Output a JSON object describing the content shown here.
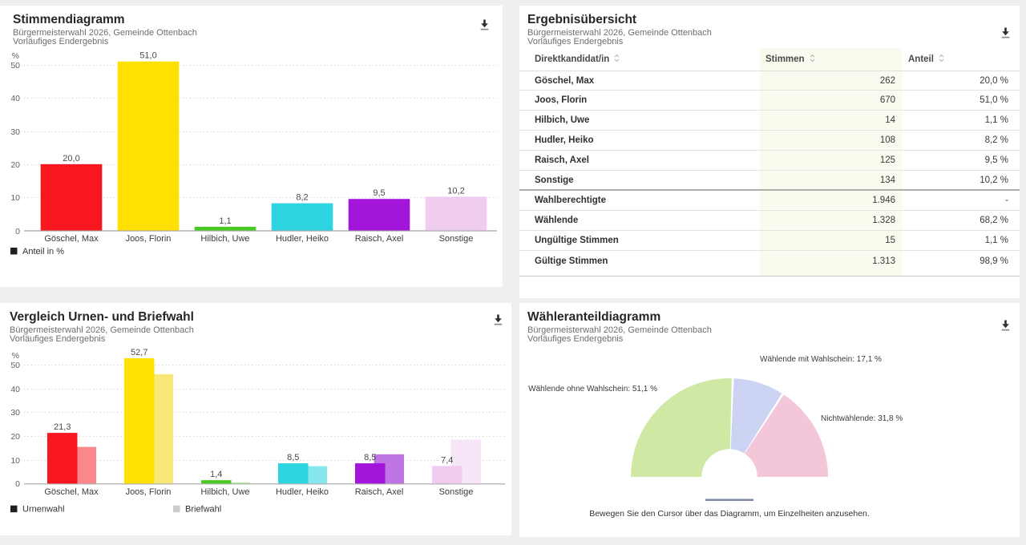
{
  "colors": {
    "page_bg": "#efefef",
    "panel_bg": "#ffffff",
    "bar": [
      "#f8171e",
      "#ffe000",
      "#47cb22",
      "#2cd5e0",
      "#a315da",
      "#f1ccf1"
    ],
    "bar_light": [
      "#f9878b",
      "#f9e878",
      "#a8e590",
      "#86e8ec",
      "#c075e5",
      "#f7e6f7"
    ],
    "legend_urnenwahl": "#1f1f1f",
    "legend_briefwahl": "#cccccc",
    "table_highlight_col": "#fafaef",
    "donut": [
      "#cfe8a4",
      "#cbd2f2",
      "#f4c6d9"
    ],
    "donut_divider": "#7d87a3"
  },
  "panels": {
    "stimmen": {
      "title": "Stimmendiagramm",
      "subtitle1": "Bürgermeisterwahl 2026, Gemeinde Ottenbach",
      "subtitle2": "Vorläufiges Endergebnis"
    },
    "ergebnis": {
      "title": "Ergebnisübersicht",
      "subtitle1": "Bürgermeisterwahl 2026, Gemeinde Ottenbach",
      "subtitle2": "Vorläufiges Endergebnis"
    },
    "vergleich": {
      "title": "Vergleich Urnen- und Briefwahl",
      "subtitle1": "Bürgermeisterwahl 2026, Gemeinde Ottenbach",
      "subtitle2": "Vorläufiges Endergebnis"
    },
    "waehleranteil": {
      "title": "Wähleranteildiagramm",
      "subtitle1": "Bürgermeisterwahl 2026, Gemeinde Ottenbach",
      "subtitle2": "Vorläufiges Endergebnis",
      "hint": "Bewegen Sie den Cursor über das Diagramm, um Einzelheiten anzusehen."
    }
  },
  "table": {
    "columns": [
      "Direktkandidat/in",
      "Stimmen",
      "Anteil"
    ],
    "rows": [
      {
        "label": "Göschel, Max",
        "stimmen": "262",
        "anteil": "20,0 %"
      },
      {
        "label": "Joos, Florin",
        "stimmen": "670",
        "anteil": "51,0 %"
      },
      {
        "label": "Hilbich, Uwe",
        "stimmen": "14",
        "anteil": "1,1 %"
      },
      {
        "label": "Hudler, Heiko",
        "stimmen": "108",
        "anteil": "8,2 %"
      },
      {
        "label": "Raisch, Axel",
        "stimmen": "125",
        "anteil": "9,5 %"
      },
      {
        "label": "Sonstige",
        "stimmen": "134",
        "anteil": "10,2 %"
      },
      {
        "label": "Wahlberechtigte",
        "stimmen": "1.946",
        "anteil": "-"
      },
      {
        "label": "Wählende",
        "stimmen": "1.328",
        "anteil": "68,2 %"
      },
      {
        "label": "Ungültige Stimmen",
        "stimmen": "15",
        "anteil": "1,1 %"
      },
      {
        "label": "Gültige Stimmen",
        "stimmen": "1.313",
        "anteil": "98,9 %"
      }
    ],
    "strong_divider_after_row_index": 5
  },
  "chart_data": [
    {
      "id": "stimmen",
      "type": "bar",
      "title": "Stimmendiagramm",
      "categories": [
        "Göschel, Max",
        "Joos, Florin",
        "Hilbich, Uwe",
        "Hudler, Heiko",
        "Raisch, Axel",
        "Sonstige"
      ],
      "values": [
        20.0,
        51.0,
        1.1,
        8.2,
        9.5,
        10.2
      ],
      "value_labels": [
        "20,0",
        "51,0",
        "1,1",
        "8,2",
        "9,5",
        "10,2"
      ],
      "ylabel": "%",
      "yticks": [
        0,
        10,
        20,
        30,
        40,
        50
      ],
      "ylim": [
        0,
        55
      ],
      "grid": "dotted",
      "legend": [
        "Anteil in %"
      ],
      "legend_position": "bottom-left"
    },
    {
      "id": "vergleich",
      "type": "bar",
      "title": "Vergleich Urnen- und Briefwahl",
      "categories": [
        "Göschel, Max",
        "Joos, Florin",
        "Hilbich, Uwe",
        "Hudler, Heiko",
        "Raisch, Axel",
        "Sonstige"
      ],
      "series": [
        {
          "name": "Urnenwahl",
          "values": [
            21.3,
            52.7,
            1.4,
            8.5,
            8.5,
            7.4
          ],
          "value_labels": [
            "21,3",
            "52,7",
            "1,4",
            "8,5",
            "8,5",
            "7,4"
          ]
        },
        {
          "name": "Briefwahl",
          "values": [
            15.4,
            46.0,
            0.4,
            7.3,
            12.3,
            18.5
          ]
        }
      ],
      "ylabel": "%",
      "yticks": [
        0,
        10,
        20,
        30,
        40,
        50
      ],
      "ylim": [
        0,
        55
      ],
      "grid": "dotted",
      "legend": [
        "Urnenwahl",
        "Briefwahl"
      ],
      "legend_position": "bottom-left"
    },
    {
      "id": "waehleranteil",
      "type": "pie",
      "variant": "half-donut",
      "title": "Wähleranteildiagramm",
      "slices": [
        {
          "label": "Wählende ohne Wahlschein",
          "pct": 51.1,
          "display": "Wählende ohne Wahlschein: 51,1 %"
        },
        {
          "label": "Wählende mit Wahlschein",
          "pct": 17.1,
          "display": "Wählende mit Wahlschein: 17,1 %"
        },
        {
          "label": "Nichtwählende",
          "pct": 31.8,
          "display": "Nichtwählende: 31,8 %"
        }
      ]
    }
  ]
}
